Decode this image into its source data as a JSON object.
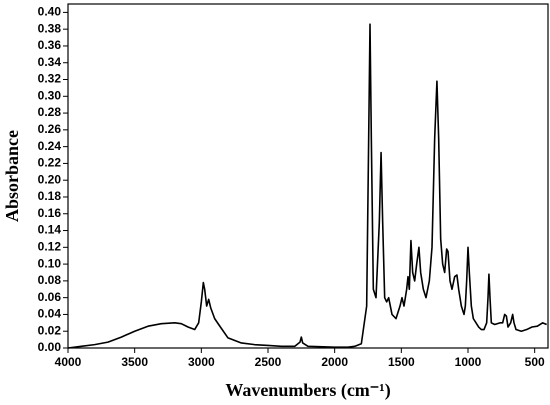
{
  "chart_data": {
    "type": "line",
    "x_label": "Wavenumbers (cm⁻¹)",
    "y_label": "Absorbance",
    "xlim": [
      4000,
      400
    ],
    "ylim": [
      0,
      0.41
    ],
    "xticks": [
      4000,
      3500,
      3000,
      2500,
      2000,
      1500,
      1000,
      500
    ],
    "yticks": [
      {
        "value": 0,
        "label": "0.00"
      },
      {
        "value": 0.02,
        "label": "0.02"
      },
      {
        "value": 0.04,
        "label": "0.04"
      },
      {
        "value": 0.06,
        "label": "0.06"
      },
      {
        "value": 0.08,
        "label": "0.08"
      },
      {
        "value": 0.1,
        "label": "0.10"
      },
      {
        "value": 0.12,
        "label": "0.12"
      },
      {
        "value": 0.14,
        "label": "0.14"
      },
      {
        "value": 0.16,
        "label": "0.16"
      },
      {
        "value": 0.18,
        "label": "0.18"
      },
      {
        "value": 0.2,
        "label": "0.20"
      },
      {
        "value": 0.22,
        "label": "0.22"
      },
      {
        "value": 0.24,
        "label": "0.24"
      },
      {
        "value": 0.26,
        "label": "0.26"
      },
      {
        "value": 0.28,
        "label": "0.28"
      },
      {
        "value": 0.3,
        "label": "0.30"
      },
      {
        "value": 0.32,
        "label": "0.32"
      },
      {
        "value": 0.34,
        "label": "0.34"
      },
      {
        "value": 0.36,
        "label": "0.36"
      },
      {
        "value": 0.38,
        "label": "0.38"
      },
      {
        "value": 0.4,
        "label": "0.40"
      }
    ],
    "x": [
      4000,
      3900,
      3800,
      3700,
      3650,
      3600,
      3500,
      3400,
      3300,
      3200,
      3150,
      3100,
      3050,
      3020,
      3000,
      2985,
      2975,
      2960,
      2945,
      2930,
      2900,
      2870,
      2800,
      2700,
      2600,
      2500,
      2400,
      2300,
      2260,
      2250,
      2240,
      2200,
      2000,
      1900,
      1850,
      1800,
      1760,
      1745,
      1735,
      1725,
      1710,
      1690,
      1665,
      1652,
      1640,
      1625,
      1610,
      1595,
      1570,
      1540,
      1510,
      1495,
      1480,
      1460,
      1450,
      1440,
      1428,
      1415,
      1400,
      1385,
      1368,
      1355,
      1335,
      1315,
      1290,
      1270,
      1250,
      1233,
      1220,
      1205,
      1190,
      1175,
      1160,
      1150,
      1135,
      1120,
      1100,
      1083,
      1070,
      1050,
      1030,
      1020,
      1010,
      1000,
      990,
      975,
      960,
      940,
      920,
      900,
      880,
      860,
      850,
      843,
      835,
      825,
      800,
      760,
      740,
      725,
      712,
      700,
      680,
      665,
      655,
      640,
      600,
      560,
      520,
      480,
      440,
      410
    ],
    "series": [
      {
        "color": "#000000",
        "values": [
          0,
          0.002,
          0.004,
          0.007,
          0.01,
          0.013,
          0.02,
          0.026,
          0.029,
          0.03,
          0.029,
          0.025,
          0.022,
          0.03,
          0.055,
          0.078,
          0.07,
          0.05,
          0.058,
          0.048,
          0.035,
          0.028,
          0.012,
          0.006,
          0.004,
          0.003,
          0.002,
          0.002,
          0.007,
          0.013,
          0.006,
          0.002,
          0.001,
          0.001,
          0.002,
          0.005,
          0.05,
          0.25,
          0.386,
          0.25,
          0.07,
          0.06,
          0.15,
          0.233,
          0.15,
          0.06,
          0.055,
          0.06,
          0.04,
          0.035,
          0.05,
          0.06,
          0.05,
          0.07,
          0.085,
          0.07,
          0.128,
          0.09,
          0.08,
          0.1,
          0.12,
          0.09,
          0.07,
          0.06,
          0.08,
          0.12,
          0.25,
          0.318,
          0.25,
          0.13,
          0.1,
          0.09,
          0.118,
          0.115,
          0.08,
          0.07,
          0.085,
          0.087,
          0.07,
          0.05,
          0.04,
          0.05,
          0.08,
          0.12,
          0.09,
          0.05,
          0.035,
          0.03,
          0.025,
          0.022,
          0.022,
          0.03,
          0.06,
          0.088,
          0.06,
          0.03,
          0.028,
          0.03,
          0.03,
          0.04,
          0.038,
          0.025,
          0.03,
          0.04,
          0.03,
          0.022,
          0.02,
          0.022,
          0.025,
          0.026,
          0.03,
          0.028
        ]
      }
    ]
  }
}
